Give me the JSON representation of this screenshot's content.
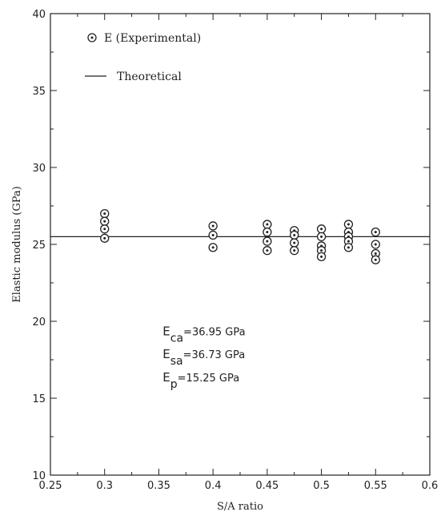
{
  "chart_data": {
    "type": "scatter",
    "xlabel": "S/A ratio",
    "ylabel": "Elastic modulus (GPa)",
    "xlim": [
      0.25,
      0.6
    ],
    "ylim": [
      10,
      40
    ],
    "xticks": [
      "0.25",
      "0.3",
      "0.35",
      "0.4",
      "0.45",
      "0.5",
      "0.55",
      "0.6"
    ],
    "yticks": [
      "10",
      "15",
      "20",
      "25",
      "30",
      "35",
      "40"
    ],
    "grid": false,
    "legend_position": "top-left",
    "series": [
      {
        "name": "E (Experimental)",
        "kind": "points",
        "points": [
          {
            "x": 0.3,
            "y": 27.0
          },
          {
            "x": 0.3,
            "y": 26.5
          },
          {
            "x": 0.3,
            "y": 26.0
          },
          {
            "x": 0.3,
            "y": 25.4
          },
          {
            "x": 0.4,
            "y": 26.2
          },
          {
            "x": 0.4,
            "y": 25.6
          },
          {
            "x": 0.4,
            "y": 24.8
          },
          {
            "x": 0.45,
            "y": 26.3
          },
          {
            "x": 0.45,
            "y": 25.8
          },
          {
            "x": 0.45,
            "y": 25.2
          },
          {
            "x": 0.45,
            "y": 24.6
          },
          {
            "x": 0.475,
            "y": 25.9
          },
          {
            "x": 0.475,
            "y": 25.6
          },
          {
            "x": 0.475,
            "y": 25.1
          },
          {
            "x": 0.475,
            "y": 24.6
          },
          {
            "x": 0.5,
            "y": 26.0
          },
          {
            "x": 0.5,
            "y": 25.5
          },
          {
            "x": 0.5,
            "y": 24.9
          },
          {
            "x": 0.5,
            "y": 24.6
          },
          {
            "x": 0.5,
            "y": 24.2
          },
          {
            "x": 0.525,
            "y": 26.3
          },
          {
            "x": 0.525,
            "y": 25.8
          },
          {
            "x": 0.525,
            "y": 25.5
          },
          {
            "x": 0.525,
            "y": 25.2
          },
          {
            "x": 0.525,
            "y": 24.8
          },
          {
            "x": 0.55,
            "y": 25.8
          },
          {
            "x": 0.55,
            "y": 25.0
          },
          {
            "x": 0.55,
            "y": 24.4
          },
          {
            "x": 0.55,
            "y": 24.0
          }
        ]
      },
      {
        "name": "Theoretical",
        "kind": "line",
        "points": [
          {
            "x": 0.25,
            "y": 25.5
          },
          {
            "x": 0.6,
            "y": 25.5
          }
        ]
      }
    ],
    "annotations": [
      {
        "base": "E",
        "sub": "ca",
        "text": "=36.95 GPa",
        "x": 0.375,
        "y": 19.1
      },
      {
        "base": "E",
        "sub": "sa",
        "text": "=36.73 GPa",
        "x": 0.375,
        "y": 17.6
      },
      {
        "base": "E",
        "sub": "p",
        "text": "=15.25 GPa",
        "x": 0.375,
        "y": 16.1
      }
    ]
  }
}
